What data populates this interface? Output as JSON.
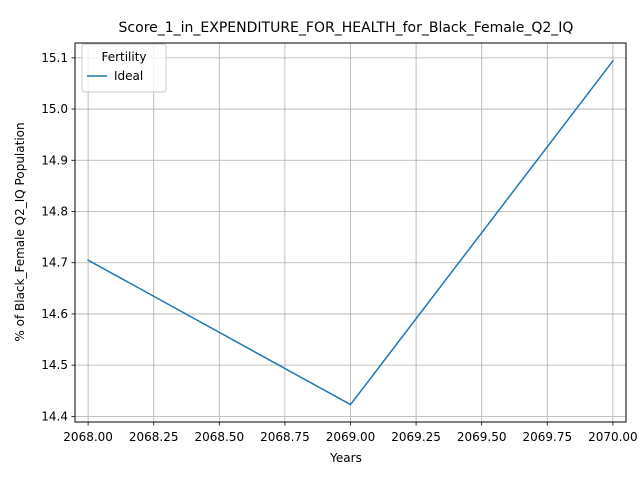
{
  "chart_data": {
    "type": "line",
    "title": "Score_1_in_EXPENDITURE_FOR_HEALTH_for_Black_Female_Q2_IQ",
    "xlabel": "Years",
    "ylabel": "% of Black_Female Q2_IQ Population",
    "x": [
      2068,
      2069,
      2070
    ],
    "xlim": [
      2067.95,
      2070.05
    ],
    "ylim": [
      14.389,
      15.129
    ],
    "xticks": [
      2068.0,
      2068.25,
      2068.5,
      2068.75,
      2069.0,
      2069.25,
      2069.5,
      2069.75,
      2070.0
    ],
    "xtick_labels": [
      "2068.00",
      "2068.25",
      "2068.50",
      "2068.75",
      "2069.00",
      "2069.25",
      "2069.50",
      "2069.75",
      "2070.00"
    ],
    "yticks": [
      14.4,
      14.5,
      14.6,
      14.7,
      14.8,
      14.9,
      15.0,
      15.1
    ],
    "ytick_labels": [
      "14.4",
      "14.5",
      "14.6",
      "14.7",
      "14.8",
      "14.9",
      "15.0",
      "15.1"
    ],
    "grid": true,
    "legend": {
      "title": "Fertility",
      "position": "top-left"
    },
    "series": [
      {
        "name": "Ideal",
        "color": "#1f77b4",
        "values": [
          14.705,
          14.423,
          15.094
        ]
      }
    ]
  }
}
